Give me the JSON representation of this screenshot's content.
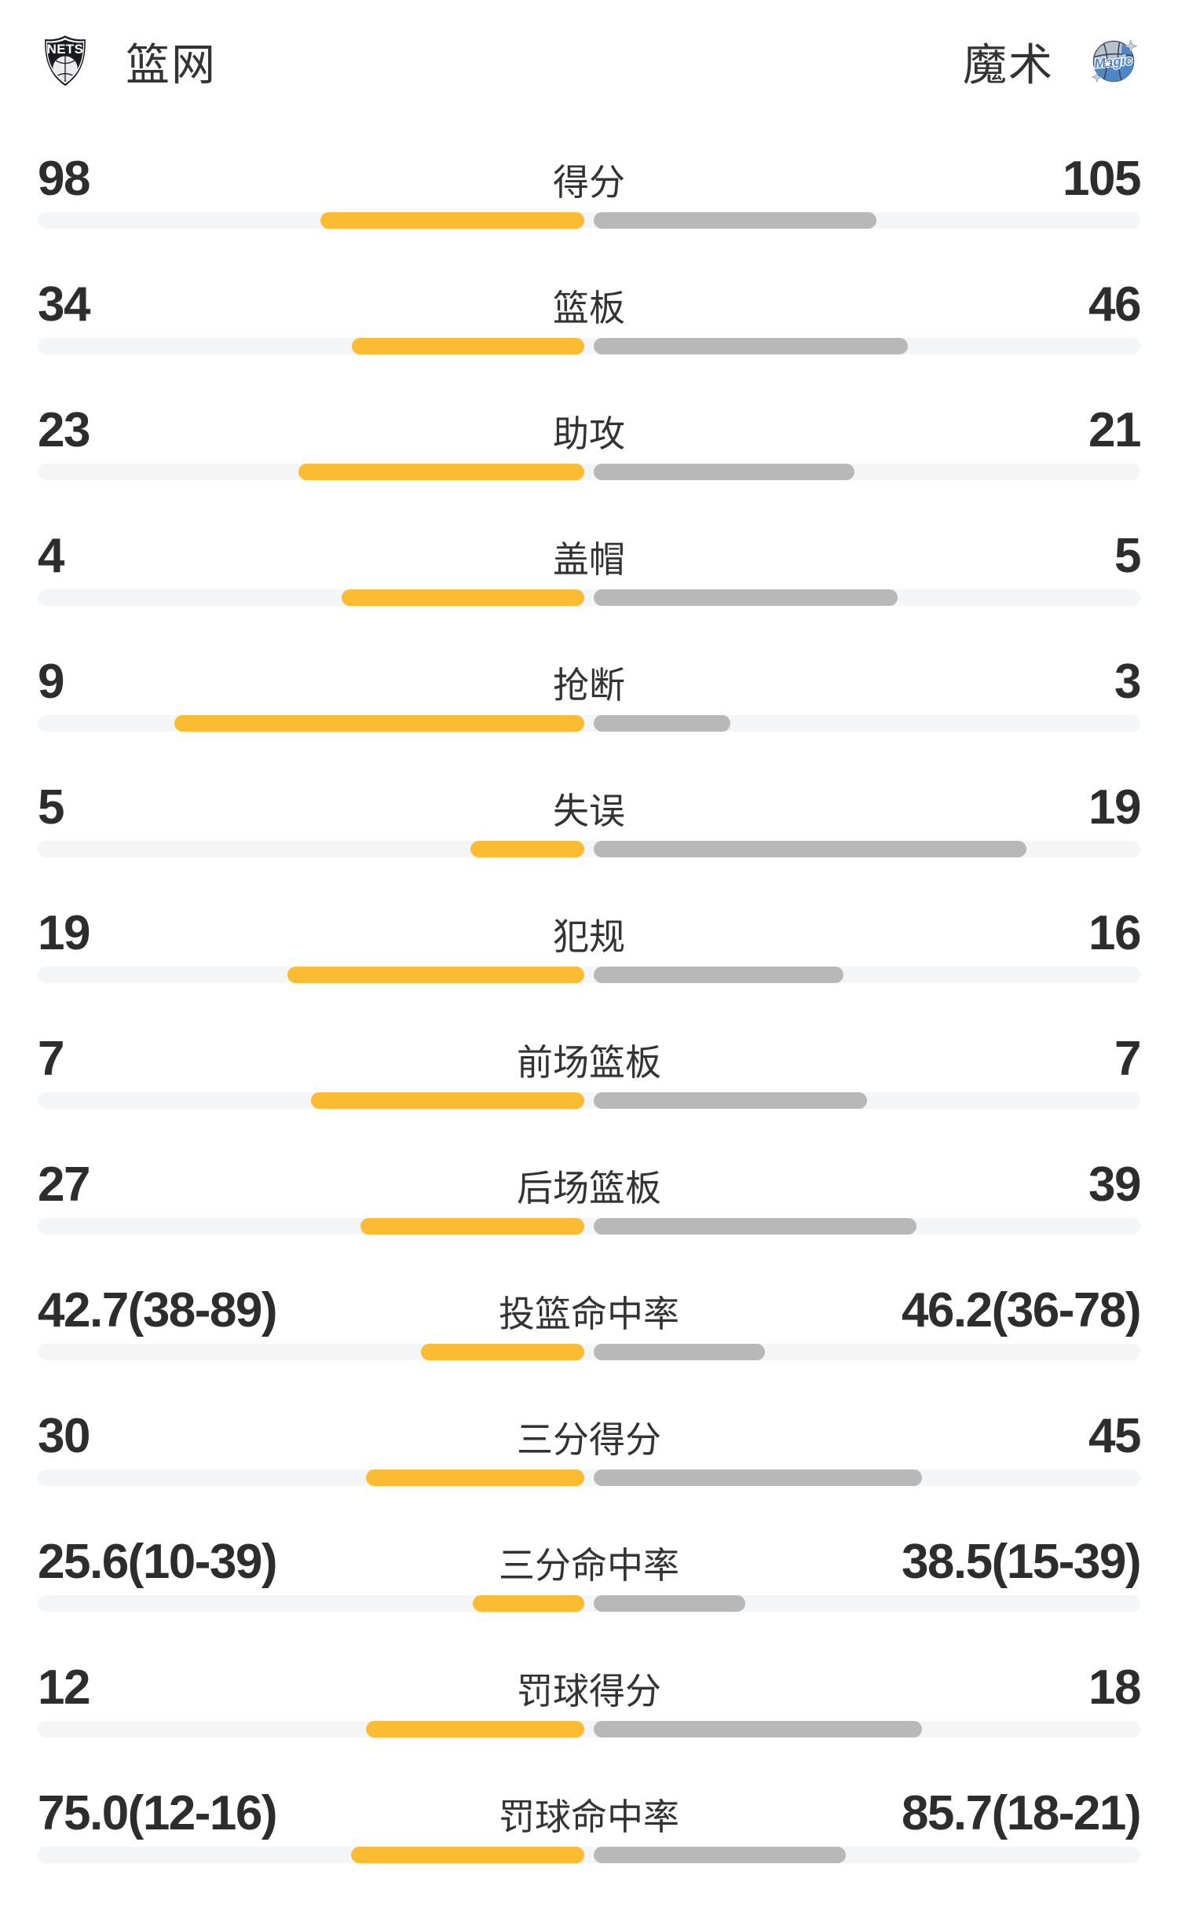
{
  "header": {
    "home_team": {
      "name": "篮网",
      "logo": "nets-logo"
    },
    "away_team": {
      "name": "魔术",
      "logo": "magic-logo"
    }
  },
  "colors": {
    "home_bar": "#FBBC34",
    "away_bar": "#B8B8B8",
    "track": "#F4F5F7",
    "number_text": "#2D2D2D",
    "label_text": "#333333"
  },
  "chart_data": {
    "type": "bar",
    "layout": "head-to-head horizontal comparison, bars grow outward from center; left/yellow = 篮网, right/gray = 魔术",
    "rows": [
      {
        "label": "得分",
        "home": "98",
        "away": "105",
        "home_bar_len": 336,
        "away_bar_len": 360
      },
      {
        "label": "篮板",
        "home": "34",
        "away": "46",
        "home_bar_len": 296,
        "away_bar_len": 400
      },
      {
        "label": "助攻",
        "home": "23",
        "away": "21",
        "home_bar_len": 364,
        "away_bar_len": 332
      },
      {
        "label": "盖帽",
        "home": "4",
        "away": "5",
        "home_bar_len": 309,
        "away_bar_len": 387
      },
      {
        "label": "抢断",
        "home": "9",
        "away": "3",
        "home_bar_len": 522,
        "away_bar_len": 174
      },
      {
        "label": "失误",
        "home": "5",
        "away": "19",
        "home_bar_len": 145,
        "away_bar_len": 551
      },
      {
        "label": "犯规",
        "home": "19",
        "away": "16",
        "home_bar_len": 378,
        "away_bar_len": 318
      },
      {
        "label": "前场篮板",
        "home": "7",
        "away": "7",
        "home_bar_len": 348,
        "away_bar_len": 348
      },
      {
        "label": "后场篮板",
        "home": "27",
        "away": "39",
        "home_bar_len": 285,
        "away_bar_len": 411
      },
      {
        "label": "投篮命中率",
        "home": "42.7(38-89)",
        "away": "46.2(36-78)",
        "home_bar_len": 208,
        "away_bar_len": 218
      },
      {
        "label": "三分得分",
        "home": "30",
        "away": "45",
        "home_bar_len": 278,
        "away_bar_len": 418
      },
      {
        "label": "三分命中率",
        "home": "25.6(10-39)",
        "away": "38.5(15-39)",
        "home_bar_len": 142,
        "away_bar_len": 193
      },
      {
        "label": "罚球得分",
        "home": "12",
        "away": "18",
        "home_bar_len": 278,
        "away_bar_len": 418
      },
      {
        "label": "罚球命中率",
        "home": "75.0(12-16)",
        "away": "85.7(18-21)",
        "home_bar_len": 297,
        "away_bar_len": 321
      }
    ]
  }
}
